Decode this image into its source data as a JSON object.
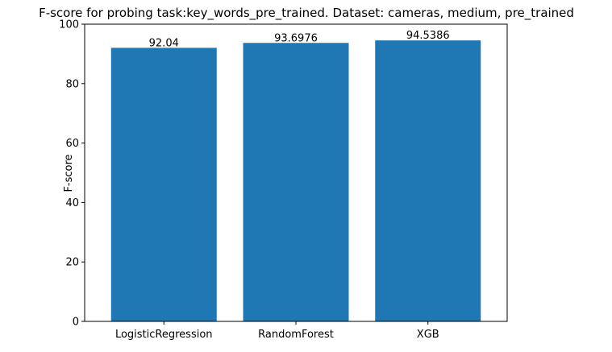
{
  "chart_data": {
    "type": "bar",
    "title": "F-score for probing task:key_words_pre_trained. Dataset: cameras, medium, pre_trained",
    "xlabel": "",
    "ylabel": "F-score",
    "categories": [
      "LogisticRegression",
      "RandomForest",
      "XGB"
    ],
    "values": [
      92.04,
      93.6976,
      94.5386
    ],
    "value_labels": [
      "92.04",
      "93.6976",
      "94.5386"
    ],
    "ylim": [
      0,
      100
    ],
    "yticks": [
      0,
      20,
      40,
      60,
      80,
      100
    ],
    "grid": false,
    "legend": "none",
    "bar_color": "#1f77b4"
  }
}
